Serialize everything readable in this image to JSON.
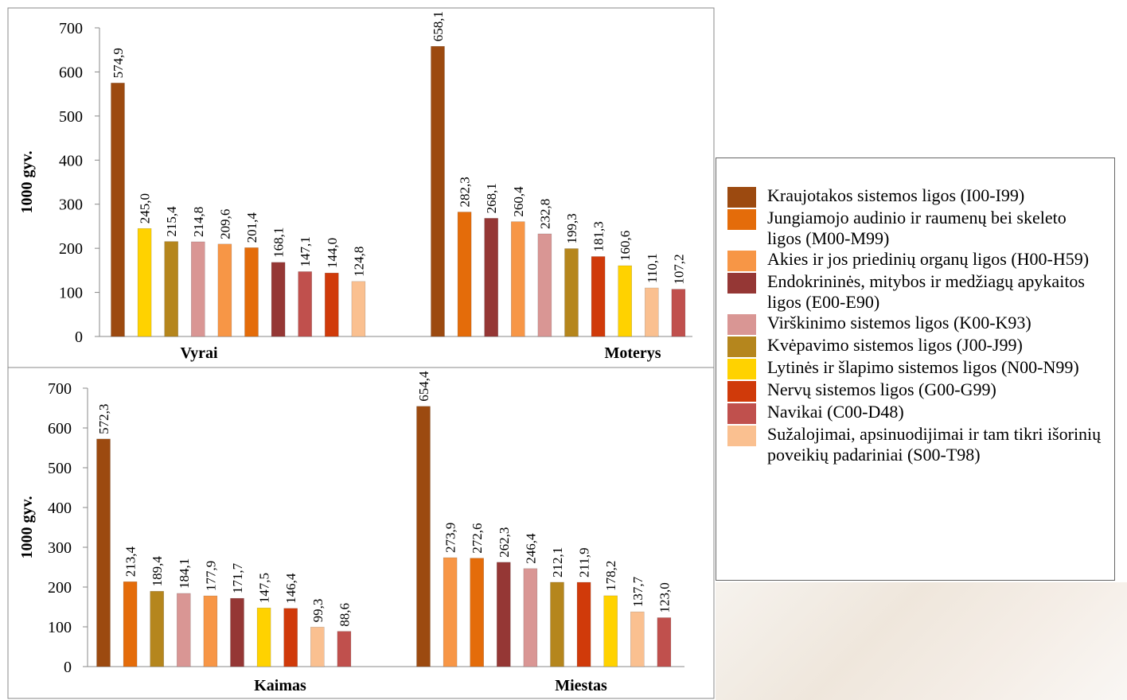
{
  "chart_data": [
    {
      "type": "bar",
      "y_label": "1000 gyv.",
      "ylim": [
        0,
        700
      ],
      "yticks": [
        0,
        100,
        200,
        300,
        400,
        500,
        600,
        700
      ],
      "groups": [
        {
          "name": "Vyrai",
          "values": [
            574.9,
            245.0,
            215.4,
            214.8,
            209.6,
            201.4,
            168.1,
            147.1,
            144.0,
            124.8
          ],
          "value_labels": [
            "574,9",
            "245,0",
            "215,4",
            "214,8",
            "209,6",
            "201,4",
            "168,1",
            "147,1",
            "144,0",
            "124,8"
          ],
          "colors": [
            "#9c4a10",
            "#ffd200",
            "#b5861d",
            "#d99694",
            "#f79646",
            "#e46c0a",
            "#953735",
            "#c0504d",
            "#d03a0a",
            "#fac090"
          ]
        },
        {
          "name": "Moterys",
          "values": [
            658.1,
            282.3,
            268.1,
            260.4,
            232.8,
            199.3,
            181.3,
            160.6,
            110.1,
            107.2
          ],
          "value_labels": [
            "658,1",
            "282,3",
            "268,1",
            "260,4",
            "232,8",
            "199,3",
            "181,3",
            "160,6",
            "110,1",
            "107,2"
          ],
          "colors": [
            "#9c4a10",
            "#e46c0a",
            "#953735",
            "#f79646",
            "#d99694",
            "#b5861d",
            "#d03a0a",
            "#ffd200",
            "#fac090",
            "#c0504d"
          ]
        }
      ]
    },
    {
      "type": "bar",
      "y_label": "1000 gyv.",
      "ylim": [
        0,
        700
      ],
      "yticks": [
        0,
        100,
        200,
        300,
        400,
        500,
        600,
        700
      ],
      "groups": [
        {
          "name": "Kaimas",
          "values": [
            572.3,
            213.4,
            189.4,
            184.1,
            177.9,
            171.7,
            147.5,
            146.4,
            99.3,
            88.6
          ],
          "value_labels": [
            "572,3",
            "213,4",
            "189,4",
            "184,1",
            "177,9",
            "171,7",
            "147,5",
            "146,4",
            "99,3",
            "88,6"
          ],
          "colors": [
            "#9c4a10",
            "#e46c0a",
            "#b5861d",
            "#d99694",
            "#f79646",
            "#953735",
            "#ffd200",
            "#d03a0a",
            "#fac090",
            "#c0504d"
          ]
        },
        {
          "name": "Miestas",
          "values": [
            654.4,
            273.9,
            272.6,
            262.3,
            246.4,
            212.1,
            211.9,
            178.2,
            137.7,
            123.0
          ],
          "value_labels": [
            "654,4",
            "273,9",
            "272,6",
            "262,3",
            "246,4",
            "212,1",
            "211,9",
            "178,2",
            "137,7",
            "123,0"
          ],
          "colors": [
            "#9c4a10",
            "#f79646",
            "#e46c0a",
            "#953735",
            "#d99694",
            "#b5861d",
            "#d03a0a",
            "#ffd200",
            "#fac090",
            "#c0504d"
          ]
        }
      ]
    }
  ],
  "legend": {
    "items": [
      {
        "name": "Kraujotakos sistemos ligos (I00-I99)",
        "color": "#9c4a10"
      },
      {
        "name": "Jungiamojo audinio ir raumenų bei skeleto ligos (M00-M99)",
        "color": "#e46c0a"
      },
      {
        "name": "Akies ir jos priedinių organų ligos (H00-H59)",
        "color": "#f79646"
      },
      {
        "name": "Endokrininės, mitybos ir medžiagų apykaitos ligos (E00-E90)",
        "color": "#953735"
      },
      {
        "name": "Virškinimo sistemos ligos (K00-K93)",
        "color": "#d99694"
      },
      {
        "name": "Kvėpavimo sistemos ligos (J00-J99)",
        "color": "#b5861d"
      },
      {
        "name": "Lytinės ir šlapimo sistemos ligos (N00-N99)",
        "color": "#ffd200"
      },
      {
        "name": "Nervų sistemos ligos (G00-G99)",
        "color": "#d03a0a"
      },
      {
        "name": "Navikai (C00-D48)",
        "color": "#c0504d"
      },
      {
        "name": "Sužalojimai, apsinuodijimai ir tam tikri išorinių poveikių padariniai (S00-T98)",
        "color": "#fac090"
      }
    ]
  }
}
